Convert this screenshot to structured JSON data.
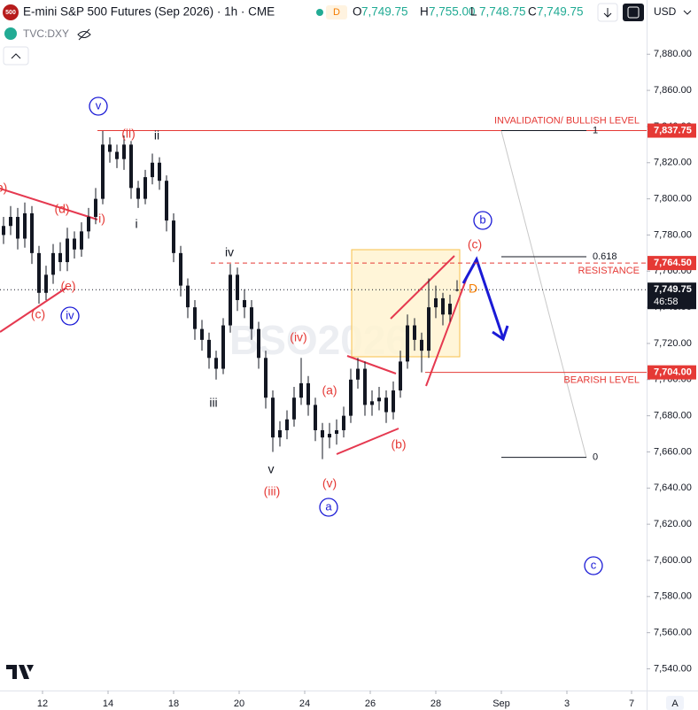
{
  "chart_data": {
    "type": "candlestick",
    "title": "E-mini S&P 500 Futures (Sep 2026) · 1h · CME",
    "symbol_badge": "500",
    "status_chip": "D",
    "legend_values": [
      {
        "prefix": "O",
        "text": "7,749.75"
      },
      {
        "prefix": "H",
        "text": "7,755.00"
      },
      {
        "prefix": "L",
        "text": "7,748.75"
      },
      {
        "prefix": "C",
        "text": "7,749.75"
      }
    ],
    "overlay_symbol": "TVC:DXY",
    "currency": "USD",
    "watermark": "BSO2026",
    "auto_label": "A",
    "color": "#131722",
    "open": [
      7780,
      7785,
      7790,
      7778,
      7792,
      7770,
      7748,
      7758,
      7770,
      7765,
      7778,
      7772,
      7782,
      7790,
      7800,
      7830,
      7826,
      7822,
      7830,
      7806,
      7800,
      7812,
      7820,
      7810,
      7788,
      7770,
      7752,
      7740,
      7728,
      7722,
      7712,
      7706,
      7730,
      7758,
      7744,
      7740,
      7728,
      7712,
      7690,
      7668,
      7672,
      7678,
      7690,
      7698,
      7686,
      7672,
      7668,
      7670,
      7672,
      7680,
      7700,
      7706,
      7686,
      7688,
      7690,
      7682,
      7694,
      7710,
      7730,
      7722,
      7716,
      7740,
      7745,
      7736,
      7749.75
    ],
    "high": [
      7790,
      7796,
      7795,
      7798,
      7796,
      7774,
      7763,
      7775,
      7776,
      7784,
      7782,
      7787,
      7795,
      7806,
      7838,
      7834,
      7830,
      7835,
      7832,
      7810,
      7816,
      7825,
      7823,
      7813,
      7792,
      7774,
      7756,
      7744,
      7733,
      7726,
      7716,
      7734,
      7764,
      7762,
      7750,
      7744,
      7732,
      7716,
      7694,
      7677,
      7683,
      7696,
      7712,
      7702,
      7690,
      7676,
      7676,
      7678,
      7685,
      7706,
      7712,
      7710,
      7694,
      7696,
      7694,
      7699,
      7716,
      7736,
      7734,
      7726,
      7756,
      7752,
      7748,
      7747,
      7755
    ],
    "low": [
      7775,
      7780,
      7772,
      7773,
      7764,
      7742,
      7744,
      7753,
      7760,
      7760,
      7767,
      7768,
      7778,
      7786,
      7797,
      7820,
      7817,
      7816,
      7800,
      7795,
      7797,
      7808,
      7805,
      7782,
      7765,
      7746,
      7734,
      7722,
      7716,
      7706,
      7700,
      7703,
      7726,
      7738,
      7734,
      7722,
      7706,
      7684,
      7660,
      7663,
      7667,
      7674,
      7686,
      7680,
      7666,
      7656,
      7662,
      7664,
      7668,
      7676,
      7695,
      7680,
      7680,
      7683,
      7676,
      7678,
      7690,
      7706,
      7716,
      7704,
      7712,
      7734,
      7730,
      7732,
      7748.75
    ],
    "close": [
      7785,
      7790,
      7778,
      7792,
      7770,
      7748,
      7758,
      7770,
      7765,
      7778,
      7772,
      7782,
      7790,
      7800,
      7830,
      7826,
      7822,
      7830,
      7806,
      7800,
      7812,
      7820,
      7810,
      7788,
      7770,
      7752,
      7740,
      7728,
      7722,
      7712,
      7706,
      7730,
      7758,
      7744,
      7740,
      7728,
      7712,
      7690,
      7668,
      7672,
      7678,
      7690,
      7698,
      7686,
      7672,
      7668,
      7670,
      7672,
      7680,
      7700,
      7706,
      7686,
      7688,
      7690,
      7682,
      7694,
      7710,
      7730,
      7722,
      7716,
      7740,
      7745,
      7736,
      7742,
      7749.75
    ],
    "xlim": [
      0,
      91.25
    ],
    "xticks": [
      {
        "value": 6,
        "label": "12"
      },
      {
        "value": 15.25,
        "label": "14"
      },
      {
        "value": 24.5,
        "label": "18"
      },
      {
        "value": 33.75,
        "label": "20"
      },
      {
        "value": 43,
        "label": "24"
      },
      {
        "value": 52.25,
        "label": "26"
      },
      {
        "value": 61.5,
        "label": "28"
      },
      {
        "value": 70.75,
        "label": "Sep"
      },
      {
        "value": 80,
        "label": "3"
      },
      {
        "value": 89.125,
        "label": "7"
      }
    ],
    "ylim": [
      7528,
      7910
    ],
    "yticks": [
      {
        "value": 7540,
        "label": "7,540.00"
      },
      {
        "value": 7560,
        "label": "7,560.00"
      },
      {
        "value": 7580,
        "label": "7,580.00"
      },
      {
        "value": 7600,
        "label": "7,600.00"
      },
      {
        "value": 7620,
        "label": "7,620.00"
      },
      {
        "value": 7640,
        "label": "7,640.00"
      },
      {
        "value": 7660,
        "label": "7,660.00"
      },
      {
        "value": 7680,
        "label": "7,680.00"
      },
      {
        "value": 7700,
        "label": "7,700.00"
      },
      {
        "value": 7720,
        "label": "7,720.00"
      },
      {
        "value": 7740,
        "label": "7,740.00"
      },
      {
        "value": 7760,
        "label": "7,760.00"
      },
      {
        "value": 7780,
        "label": "7,780.00"
      },
      {
        "value": 7800,
        "label": "7,800.00"
      },
      {
        "value": 7820,
        "label": "7,820.00"
      },
      {
        "value": 7840,
        "label": "7,840.00"
      },
      {
        "value": 7860,
        "label": "7,860.00"
      },
      {
        "value": 7880,
        "label": "7,880.00"
      }
    ],
    "grid": false,
    "price_lines": [
      {
        "value": 7837.75,
        "label": "7,837.75",
        "color": "#e53935",
        "style": "solid",
        "caption": "INVALIDATION/ BULLISH LEVEL"
      },
      {
        "value": 7764.5,
        "label": "7,764.50",
        "color": "#e53935",
        "style": "dashed",
        "caption": "RESISTANCE"
      },
      {
        "value": 7749.75,
        "label": "7,749.75",
        "color": "#131722",
        "style": "dotted",
        "countdown": "46:58"
      },
      {
        "value": 7704,
        "label": "7,704.00",
        "color": "#e53935",
        "style": "solid",
        "caption": "BEARISH LEVEL"
      }
    ],
    "fib_levels": [
      {
        "level": 1,
        "price": 7837.75
      },
      {
        "level": 0.618,
        "price": 7768
      },
      {
        "level": 0,
        "price": 7657
      }
    ],
    "wave_labels": [
      {
        "text": "b)",
        "color": "#e53935"
      },
      {
        "text": "(d)",
        "color": "#e53935"
      },
      {
        "text": "i)",
        "color": "#e53935"
      },
      {
        "text": "(e)",
        "color": "#e53935"
      },
      {
        "text": "(c)",
        "color": "#e53935"
      },
      {
        "text": "iv",
        "color": "#1a1ad6",
        "circled": true
      },
      {
        "text": "v",
        "color": "#1a1ad6",
        "circled": true
      },
      {
        "text": "(ii)",
        "color": "#e53935"
      },
      {
        "text": "ii",
        "color": "#131722"
      },
      {
        "text": "i",
        "color": "#131722"
      },
      {
        "text": "iv",
        "color": "#131722"
      },
      {
        "text": "iii",
        "color": "#131722"
      },
      {
        "text": "(iv)",
        "color": "#e53935"
      },
      {
        "text": "(a)",
        "color": "#e53935"
      },
      {
        "text": "v",
        "color": "#131722"
      },
      {
        "text": "(iii)",
        "color": "#e53935"
      },
      {
        "text": "(v)",
        "color": "#e53935"
      },
      {
        "text": "a",
        "color": "#1a1ad6",
        "circled": true
      },
      {
        "text": "(b)",
        "color": "#e53935"
      },
      {
        "text": "(c)",
        "color": "#e53935"
      },
      {
        "text": "b",
        "color": "#1a1ad6",
        "circled": true
      },
      {
        "text": "D",
        "color": "#f57c00"
      },
      {
        "text": "c",
        "color": "#1a1ad6",
        "circled": true
      }
    ]
  }
}
